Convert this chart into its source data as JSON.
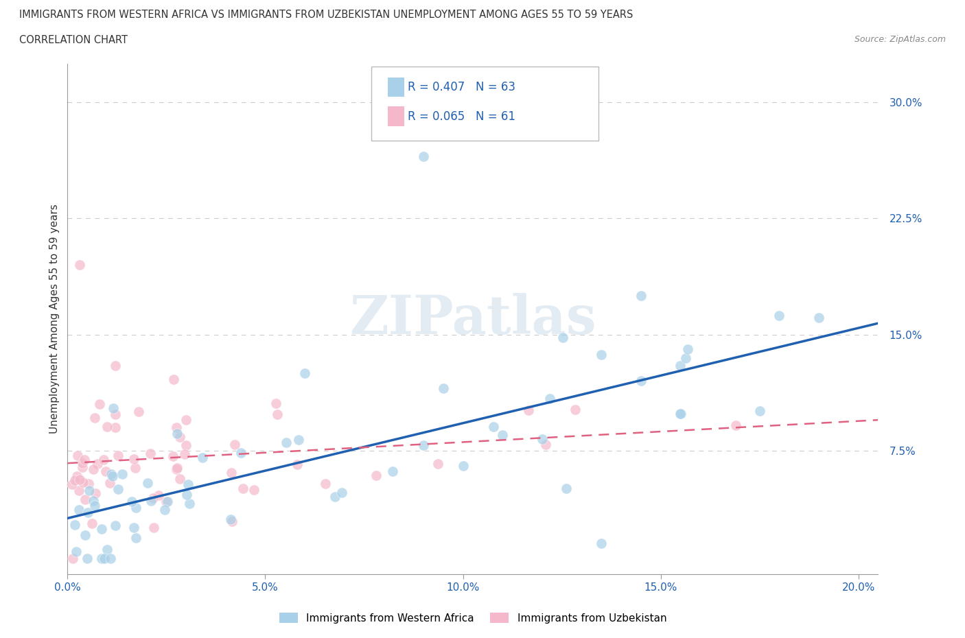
{
  "title_line1": "IMMIGRANTS FROM WESTERN AFRICA VS IMMIGRANTS FROM UZBEKISTAN UNEMPLOYMENT AMONG AGES 55 TO 59 YEARS",
  "title_line2": "CORRELATION CHART",
  "source": "Source: ZipAtlas.com",
  "ylabel": "Unemployment Among Ages 55 to 59 years",
  "watermark": "ZIPatlas",
  "series1_label": "Immigrants from Western Africa",
  "series2_label": "Immigrants from Uzbekistan",
  "series1_R": "R = 0.407",
  "series1_N": "N = 63",
  "series2_R": "R = 0.065",
  "series2_N": "N = 61",
  "series1_color": "#a8d0e8",
  "series2_color": "#f5b8cb",
  "series1_line_color": "#2060b0",
  "series2_line_color": "#e06080",
  "xlim": [
    0.0,
    0.205
  ],
  "ylim": [
    -0.005,
    0.325
  ],
  "xticks": [
    0.0,
    0.05,
    0.1,
    0.15,
    0.2
  ],
  "yticks": [
    0.075,
    0.15,
    0.225,
    0.3
  ],
  "xtick_labels": [
    "0.0%",
    "5.0%",
    "10.0%",
    "15.0%",
    "20.0%"
  ],
  "ytick_labels": [
    "7.5%",
    "15.0%",
    "22.5%",
    "30.0%"
  ],
  "grid_color": "#cccccc",
  "background_color": "#ffffff",
  "tick_color": "#999999",
  "text_color": "#333333",
  "blue_color": "#2060b0"
}
